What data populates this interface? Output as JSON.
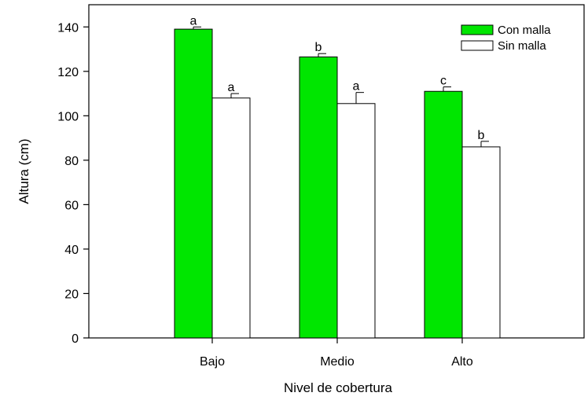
{
  "chart_data": {
    "type": "bar",
    "title": "",
    "xlabel": "Nivel de cobertura",
    "ylabel": "Altura (cm)",
    "categories": [
      "Bajo",
      "Medio",
      "Alto"
    ],
    "ylim": [
      0,
      150
    ],
    "yticks": [
      0,
      20,
      40,
      60,
      80,
      100,
      120,
      140
    ],
    "grid": false,
    "legend_position": "top-right",
    "series": [
      {
        "name": "Con malla",
        "color": "#00e600",
        "values": [
          139,
          126.5,
          111
        ],
        "errors": [
          1,
          1.5,
          2
        ],
        "letters": [
          "a",
          "b",
          "c"
        ]
      },
      {
        "name": "Sin malla",
        "color": "#ffffff",
        "values": [
          108,
          105.5,
          86
        ],
        "errors": [
          2,
          5,
          2.5
        ],
        "letters": [
          "a",
          "a",
          "b"
        ]
      }
    ]
  }
}
